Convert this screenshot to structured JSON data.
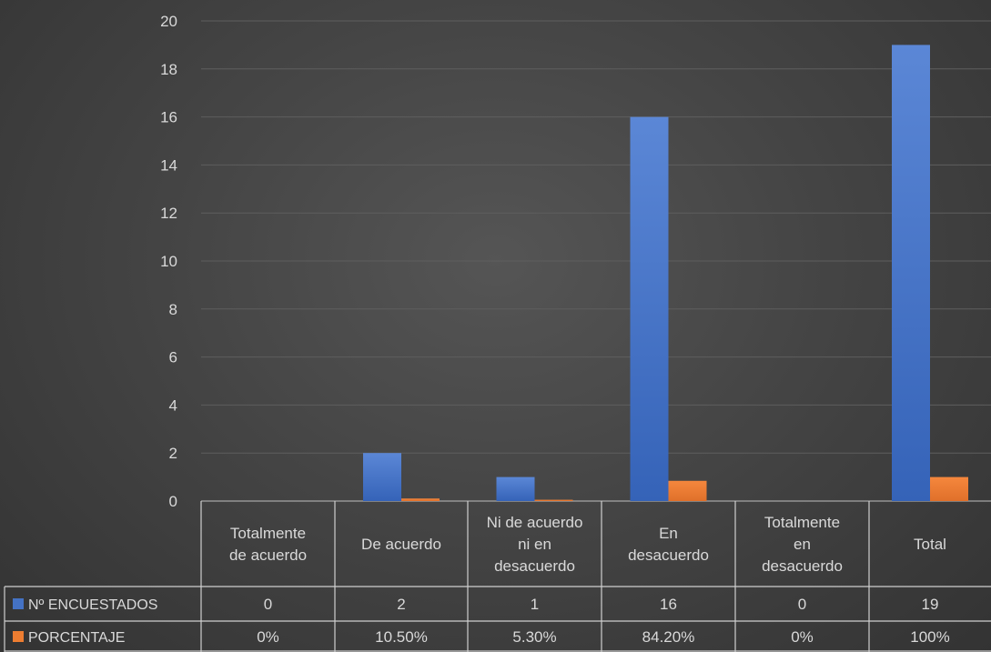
{
  "chart_data": {
    "type": "bar",
    "title": "",
    "xlabel": "",
    "ylabel": "",
    "ylim": [
      0,
      20
    ],
    "yticks": [
      "0",
      "2",
      "4",
      "6",
      "8",
      "10",
      "12",
      "14",
      "16",
      "18",
      "20"
    ],
    "grid": true,
    "legend": "table-left",
    "categories": [
      [
        "Totalmente",
        "de acuerdo"
      ],
      [
        "De acuerdo"
      ],
      [
        "Ni de acuerdo",
        "ni en",
        "desacuerdo"
      ],
      [
        "En",
        "desacuerdo"
      ],
      [
        "Totalmente",
        "en",
        "desacuerdo"
      ],
      [
        "Total"
      ]
    ],
    "series": [
      {
        "name": "Nº ENCUESTADOS",
        "color": "#4472c4",
        "values": [
          0,
          2,
          1,
          16,
          0,
          19
        ],
        "labels": [
          "0",
          "2",
          "1",
          "16",
          "0",
          "19"
        ]
      },
      {
        "name": "PORCENTAJE",
        "color": "#ed7d31",
        "values": [
          0,
          0.105,
          0.053,
          0.842,
          0,
          1
        ],
        "labels": [
          "0%",
          "10.50%",
          "5.30%",
          "84.20%",
          "0%",
          "100%"
        ]
      }
    ]
  }
}
